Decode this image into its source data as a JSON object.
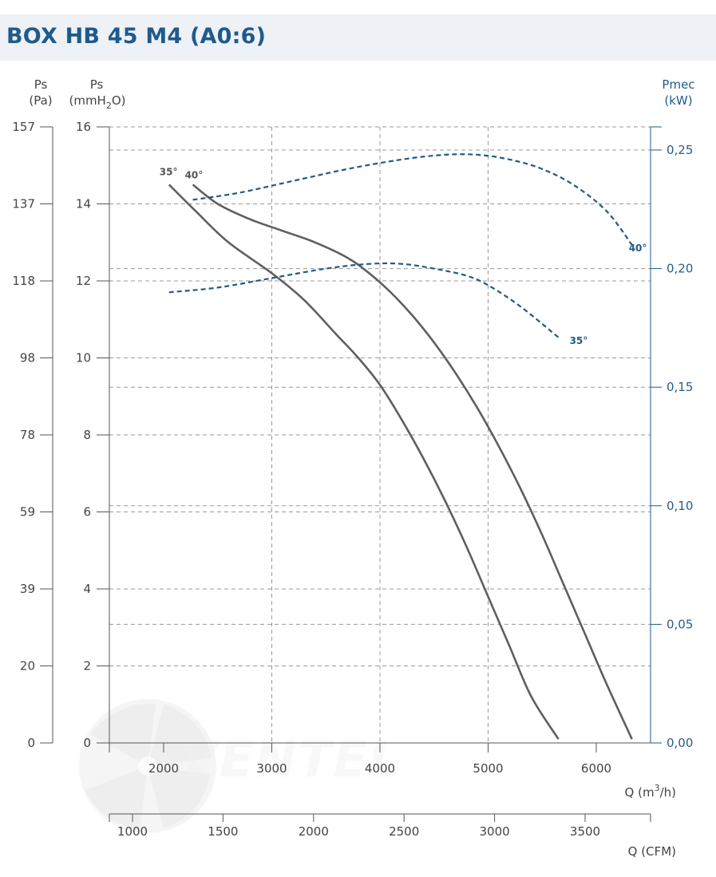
{
  "title": "BOX HB 45 M4 (A0:6)",
  "watermark": "VENTEL",
  "colors": {
    "title_bar": "#eef1f6",
    "title_text": "#1f5a8c",
    "pressure_curve": "#5f5f5f",
    "power_curve": "#1f5a8c",
    "grid": "#9a9a9a"
  },
  "axes": {
    "ps_pa": {
      "label_line1": "Ps",
      "label_line2": "(Pa)",
      "ticks": [
        "0",
        "20",
        "39",
        "59",
        "78",
        "98",
        "118",
        "137",
        "157"
      ]
    },
    "ps_mm": {
      "label_line1": "Ps",
      "label_line2_pre": "(mmH",
      "label_line2_sub": "2",
      "label_line2_post": "O)",
      "ticks": [
        "0",
        "2",
        "4",
        "6",
        "8",
        "10",
        "12",
        "14",
        "16"
      ]
    },
    "pmec": {
      "label_line1": "Pmec",
      "label_line2": "(kW)",
      "ticks": [
        "0,00",
        "0,05",
        "0,10",
        "0,15",
        "0,20",
        "0,25"
      ]
    },
    "q_m3h": {
      "label_pre": "Q (m",
      "label_sup": "3",
      "label_post": "/h)",
      "ticks": [
        "2000",
        "3000",
        "4000",
        "5000",
        "6000"
      ]
    },
    "q_cfm": {
      "label": "Q (CFM)",
      "ticks": [
        "1000",
        "1500",
        "2000",
        "2500",
        "3000",
        "3500"
      ]
    }
  },
  "chart_data": {
    "type": "line",
    "title": "BOX HB 45 M4 (A0:6)",
    "xlabel": "Q (m3/h)",
    "ylabel": "Ps (mmH2O)",
    "y2label": "Pmec (kW)",
    "xlim": [
      1000,
      6500
    ],
    "ylim": [
      0,
      16
    ],
    "y2lim": [
      0,
      0.26
    ],
    "secondary_x": {
      "label": "Q (CFM)",
      "ticks": [
        1000,
        1500,
        2000,
        2500,
        3000,
        3500
      ]
    },
    "grid": true,
    "series": [
      {
        "name": "35°",
        "kind": "pressure",
        "axis": "Ps (mmH2O)",
        "x": [
          2050,
          2300,
          2600,
          3000,
          3300,
          3600,
          3800,
          4000,
          4200,
          4400,
          4600,
          4800,
          5000,
          5200,
          5400,
          5650
        ],
        "y": [
          14.5,
          13.8,
          13.0,
          12.2,
          11.5,
          10.6,
          10.0,
          9.3,
          8.4,
          7.4,
          6.3,
          5.1,
          3.8,
          2.5,
          1.2,
          0.1
        ]
      },
      {
        "name": "40°",
        "kind": "pressure",
        "axis": "Ps (mmH2O)",
        "x": [
          2270,
          2500,
          2800,
          3100,
          3400,
          3700,
          3900,
          4100,
          4300,
          4500,
          4700,
          4900,
          5100,
          5300,
          5500,
          5700,
          5900,
          6100,
          6330
        ],
        "y": [
          14.5,
          14.0,
          13.6,
          13.3,
          13.0,
          12.6,
          12.2,
          11.7,
          11.1,
          10.4,
          9.6,
          8.7,
          7.7,
          6.6,
          5.4,
          4.1,
          2.8,
          1.5,
          0.1
        ]
      },
      {
        "name": "35°",
        "kind": "power",
        "axis": "Pmec (kW)",
        "x": [
          2050,
          2500,
          3000,
          3500,
          3900,
          4200,
          4500,
          4800,
          5000,
          5300,
          5650
        ],
        "y": [
          0.19,
          0.192,
          0.196,
          0.2,
          0.202,
          0.202,
          0.2,
          0.197,
          0.193,
          0.184,
          0.171
        ]
      },
      {
        "name": "40°",
        "kind": "power",
        "axis": "Pmec (kW)",
        "x": [
          2270,
          2700,
          3200,
          3700,
          4200,
          4600,
          4900,
          5200,
          5500,
          5800,
          6100,
          6330
        ],
        "y": [
          0.229,
          0.232,
          0.237,
          0.242,
          0.246,
          0.248,
          0.248,
          0.246,
          0.242,
          0.235,
          0.224,
          0.21
        ]
      }
    ],
    "curve_labels": [
      {
        "text": "35°",
        "kind": "pressure"
      },
      {
        "text": "40°",
        "kind": "pressure"
      },
      {
        "text": "40°",
        "kind": "power"
      },
      {
        "text": "35°",
        "kind": "power"
      }
    ]
  }
}
